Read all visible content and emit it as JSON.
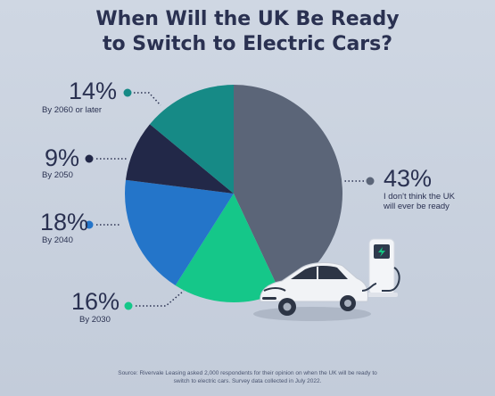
{
  "title_line1": "When Will the UK Be Ready",
  "title_line2": "to Switch to Electric Cars?",
  "chart_data": {
    "type": "pie",
    "title": "When Will the UK Be Ready to Switch to Electric Cars?",
    "unit": "%",
    "slices": [
      {
        "label": "I don't think the UK will ever be ready",
        "label_line1": "I don't think the UK",
        "label_line2": "will ever be ready",
        "value": 43,
        "display": "43%",
        "color": "#5b6578"
      },
      {
        "label": "By 2030",
        "value": 16,
        "display": "16%",
        "color": "#15c789"
      },
      {
        "label": "By 2040",
        "value": 18,
        "display": "18%",
        "color": "#2475c9"
      },
      {
        "label": "By 2050",
        "value": 9,
        "display": "9%",
        "color": "#222848"
      },
      {
        "label": "By 2060 or later",
        "value": 14,
        "display": "14%",
        "color": "#168a86"
      }
    ]
  },
  "source_line1": "Source: Rivervale Leasing asked 2,000 respondents for their opinion on when the UK will be ready to",
  "source_line2": "switch to electric cars. Survey data collected in July 2022.",
  "colors": {
    "text": "#2a3151",
    "charger_accent": "#16c784"
  }
}
